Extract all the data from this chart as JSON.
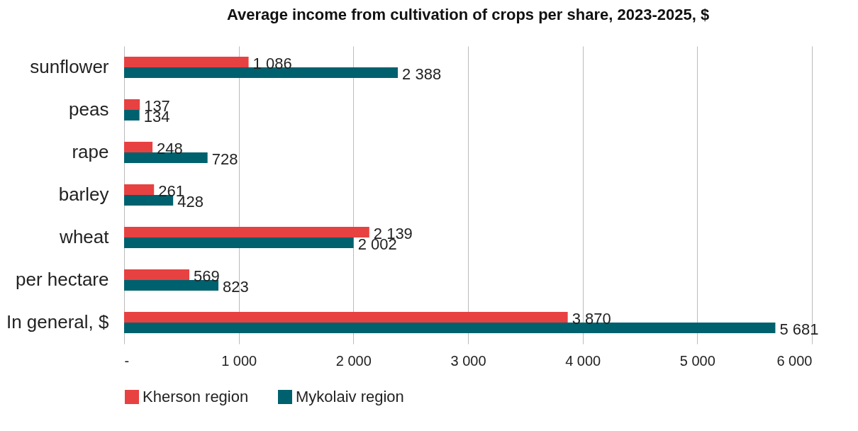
{
  "chart_data": {
    "type": "bar",
    "orientation": "horizontal",
    "title": "Average income from cultivation of crops per share, 2023-2025, $",
    "categories": [
      "sunflower",
      "peas",
      "rape",
      "barley",
      "wheat",
      "per hectare",
      "In general, $"
    ],
    "series": [
      {
        "name": "Kherson region",
        "color": "#e84141",
        "values": [
          1086,
          137,
          248,
          261,
          2139,
          569,
          3870
        ],
        "value_labels": [
          "1 086",
          "137",
          "248",
          "261",
          "2 139",
          "569",
          "3 870"
        ]
      },
      {
        "name": "Mykolaiv region",
        "color": "#00616e",
        "values": [
          2388,
          134,
          728,
          428,
          2002,
          823,
          5681
        ],
        "value_labels": [
          "2 388",
          "134",
          "728",
          "428",
          "2 002",
          "823",
          "5 681"
        ]
      }
    ],
    "xlim": [
      0,
      6000
    ],
    "xticks": [
      {
        "value": 0,
        "label": "-"
      },
      {
        "value": 1000,
        "label": "1 000"
      },
      {
        "value": 2000,
        "label": "2 000"
      },
      {
        "value": 3000,
        "label": "3 000"
      },
      {
        "value": 4000,
        "label": "4 000"
      },
      {
        "value": 5000,
        "label": "5 000"
      },
      {
        "value": 6000,
        "label": "6 000"
      }
    ],
    "grid": "x",
    "legend": "bottom"
  }
}
